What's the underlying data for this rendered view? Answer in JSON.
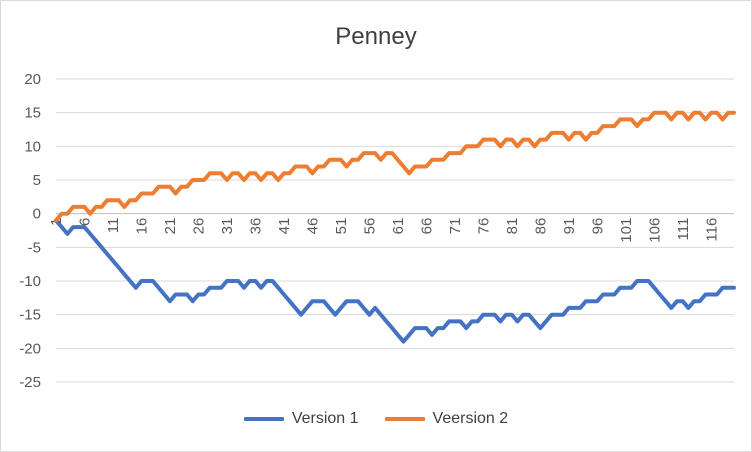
{
  "chart_data": {
    "type": "line",
    "title": "Penney",
    "xlabel": "",
    "ylabel": "",
    "ylim": [
      -25,
      20
    ],
    "yticks": [
      20,
      15,
      10,
      5,
      0,
      -5,
      -10,
      -15,
      -20,
      -25
    ],
    "xticks": [
      1,
      6,
      11,
      16,
      21,
      26,
      31,
      36,
      41,
      46,
      51,
      56,
      61,
      66,
      71,
      76,
      81,
      86,
      91,
      96,
      101,
      106,
      111,
      116
    ],
    "x_start": 1,
    "x_end": 120,
    "grid": "horizontal",
    "legend_position": "bottom",
    "series": [
      {
        "name": "Version 1",
        "color": "#4472c4",
        "values": [
          -1,
          -2,
          -3,
          -2,
          -2,
          -2,
          -3,
          -4,
          -5,
          -6,
          -7,
          -8,
          -9,
          -10,
          -11,
          -10,
          -10,
          -10,
          -11,
          -12,
          -13,
          -12,
          -12,
          -12,
          -13,
          -12,
          -12,
          -11,
          -11,
          -11,
          -10,
          -10,
          -10,
          -11,
          -10,
          -10,
          -11,
          -10,
          -10,
          -11,
          -12,
          -13,
          -14,
          -15,
          -14,
          -13,
          -13,
          -13,
          -14,
          -15,
          -14,
          -13,
          -13,
          -13,
          -14,
          -15,
          -14,
          -15,
          -16,
          -17,
          -18,
          -19,
          -18,
          -17,
          -17,
          -17,
          -18,
          -17,
          -17,
          -16,
          -16,
          -16,
          -17,
          -16,
          -16,
          -15,
          -15,
          -15,
          -16,
          -15,
          -15,
          -16,
          -15,
          -15,
          -16,
          -17,
          -16,
          -15,
          -15,
          -15,
          -14,
          -14,
          -14,
          -13,
          -13,
          -13,
          -12,
          -12,
          -12,
          -11,
          -11,
          -11,
          -10,
          -10,
          -10,
          -11,
          -12,
          -13,
          -14,
          -13,
          -13,
          -14,
          -13,
          -13,
          -12,
          -12,
          -12,
          -11,
          -11,
          -11
        ]
      },
      {
        "name": "Veersion 2",
        "color": "#ed7d31",
        "values": [
          -1,
          0,
          0,
          1,
          1,
          1,
          0,
          1,
          1,
          2,
          2,
          2,
          1,
          2,
          2,
          3,
          3,
          3,
          4,
          4,
          4,
          3,
          4,
          4,
          5,
          5,
          5,
          6,
          6,
          6,
          5,
          6,
          6,
          5,
          6,
          6,
          5,
          6,
          6,
          5,
          6,
          6,
          7,
          7,
          7,
          6,
          7,
          7,
          8,
          8,
          8,
          7,
          8,
          8,
          9,
          9,
          9,
          8,
          9,
          9,
          8,
          7,
          6,
          7,
          7,
          7,
          8,
          8,
          8,
          9,
          9,
          9,
          10,
          10,
          10,
          11,
          11,
          11,
          10,
          11,
          11,
          10,
          11,
          11,
          10,
          11,
          11,
          12,
          12,
          12,
          11,
          12,
          12,
          11,
          12,
          12,
          13,
          13,
          13,
          14,
          14,
          14,
          13,
          14,
          14,
          15,
          15,
          15,
          14,
          15,
          15,
          14,
          15,
          15,
          14,
          15,
          15,
          14,
          15,
          15
        ]
      }
    ]
  }
}
